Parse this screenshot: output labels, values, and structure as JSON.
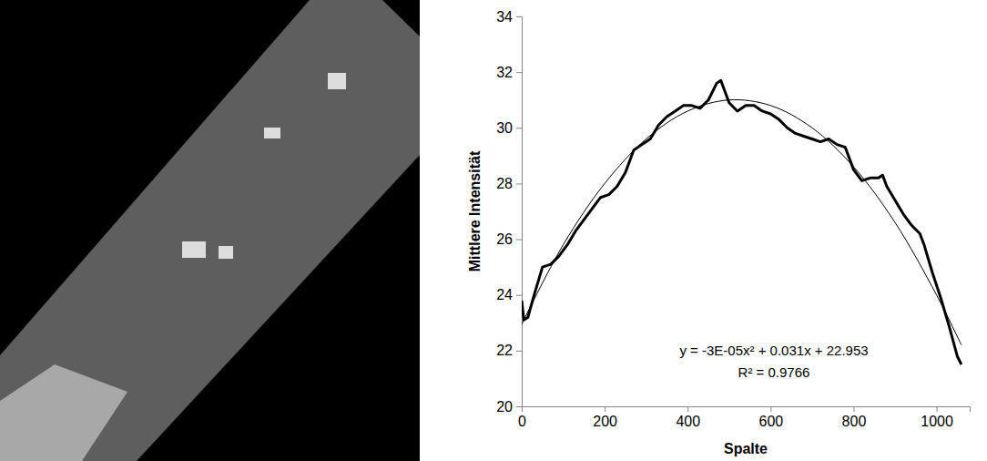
{
  "chart_data": {
    "type": "line",
    "x_label": "Spalte",
    "y_label": "Mittlere Intensität",
    "annotations": [
      "y = -3E-05x² + 0.031x + 22.953",
      "R² = 0.9766"
    ],
    "xlim": [
      0,
      1080
    ],
    "xticks": [
      0,
      200,
      400,
      600,
      800,
      1000
    ],
    "ylim": [
      20,
      34
    ],
    "yticks": [
      20,
      22,
      24,
      26,
      28,
      30,
      32,
      34
    ],
    "grid": false,
    "series": [
      {
        "type": "line",
        "color": "#000000",
        "x": [
          0,
          5,
          15,
          30,
          50,
          70,
          90,
          110,
          130,
          150,
          170,
          190,
          210,
          230,
          250,
          270,
          290,
          310,
          330,
          350,
          370,
          390,
          410,
          430,
          450,
          470,
          480,
          490,
          500,
          520,
          540,
          560,
          580,
          600,
          620,
          640,
          660,
          680,
          700,
          720,
          740,
          760,
          780,
          800,
          820,
          840,
          860,
          870,
          880,
          900,
          920,
          940,
          960,
          970,
          990,
          1010,
          1030,
          1050,
          1060
        ],
        "values": [
          23.8,
          23.1,
          23.2,
          24.0,
          25.0,
          25.1,
          25.4,
          25.8,
          26.3,
          26.7,
          27.1,
          27.5,
          27.6,
          27.9,
          28.4,
          29.2,
          29.4,
          29.6,
          30.1,
          30.4,
          30.6,
          30.8,
          30.8,
          30.7,
          31.0,
          31.6,
          31.7,
          31.3,
          30.9,
          30.6,
          30.8,
          30.8,
          30.6,
          30.5,
          30.3,
          30.0,
          29.8,
          29.7,
          29.6,
          29.5,
          29.6,
          29.4,
          29.3,
          28.5,
          28.1,
          28.2,
          28.2,
          28.3,
          27.9,
          27.4,
          26.9,
          26.5,
          26.2,
          25.8,
          24.8,
          23.9,
          22.9,
          21.8,
          21.5
        ]
      },
      {
        "type": "trendline",
        "color": "#000000",
        "x": [
          0,
          100,
          200,
          300,
          400,
          500,
          600,
          700,
          800,
          900,
          1000,
          1060
        ],
        "values": [
          22.95,
          25.8,
          28.0,
          29.6,
          30.6,
          31.0,
          30.8,
          30.0,
          28.6,
          26.6,
          24.0,
          22.2
        ]
      }
    ]
  }
}
